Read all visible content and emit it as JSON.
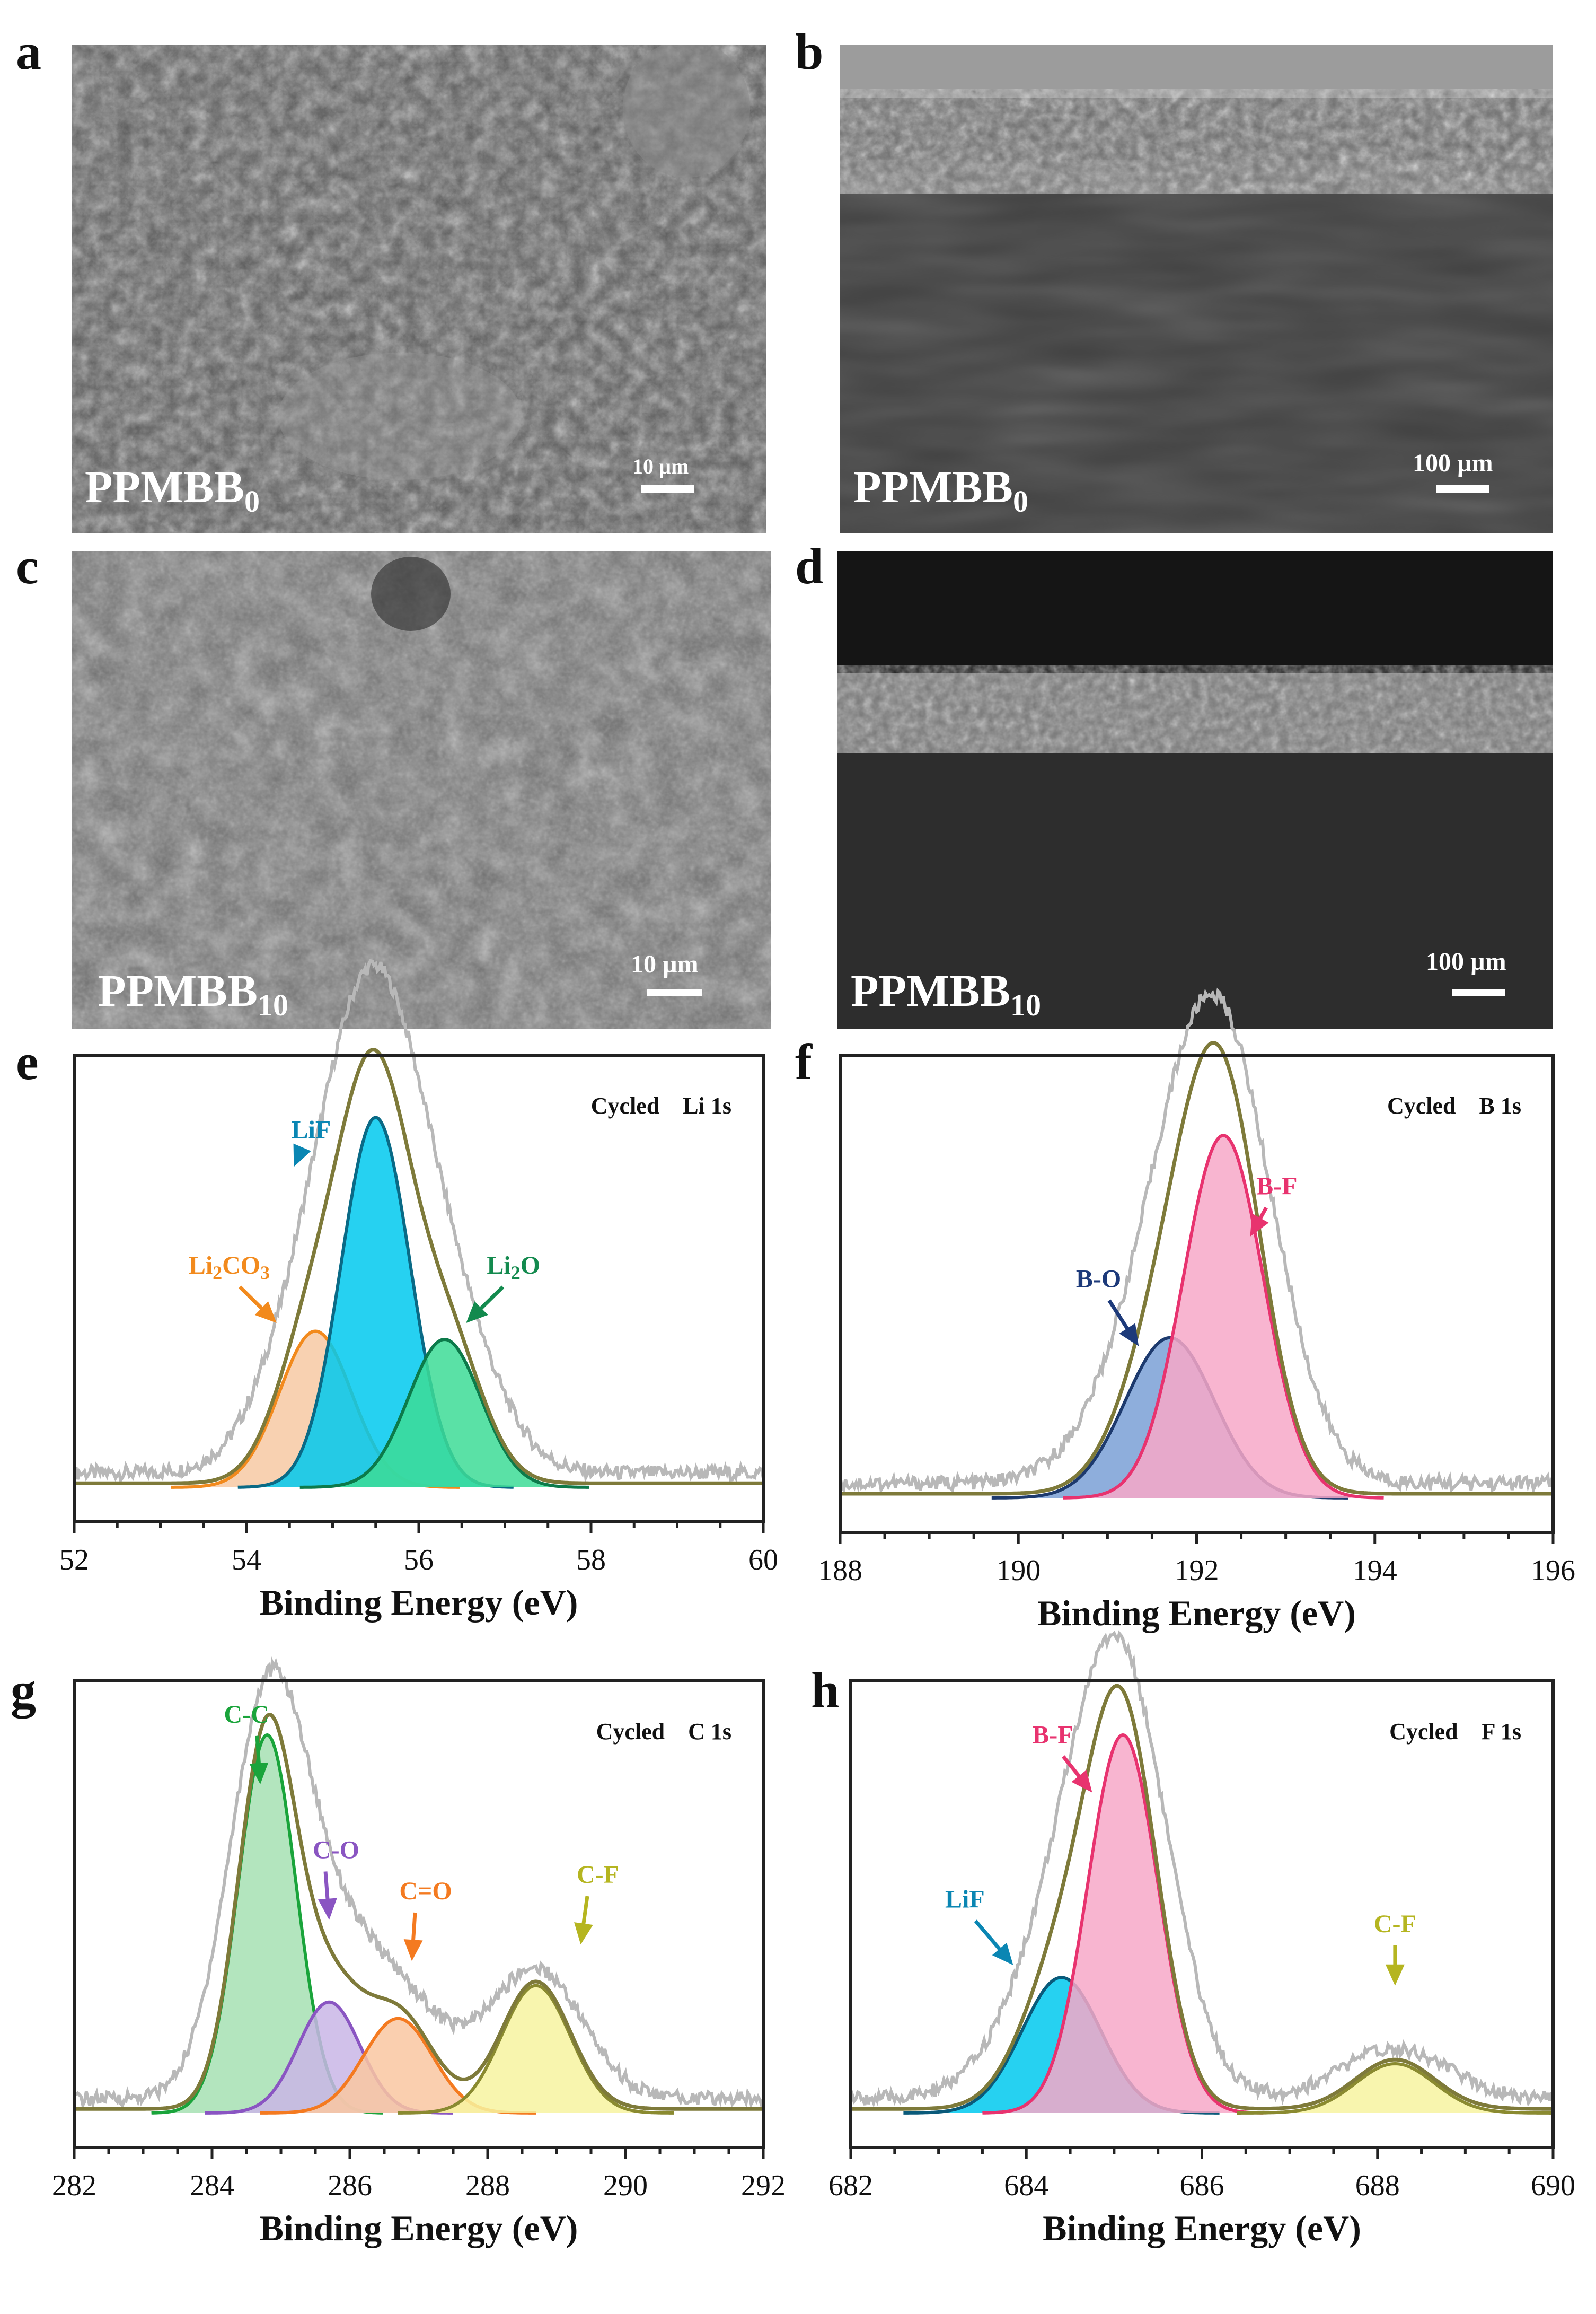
{
  "panels": {
    "a": {
      "letter": "a",
      "label": "PPMBB",
      "sub": "0",
      "scale": "10 µm"
    },
    "b": {
      "letter": "b",
      "label": "PPMBB",
      "sub": "0",
      "scale": "100 µm"
    },
    "c": {
      "letter": "c",
      "label": "PPMBB",
      "sub": "10",
      "scale": "10 µm"
    },
    "d": {
      "letter": "d",
      "label": "PPMBB",
      "sub": "10",
      "scale": "100 µm"
    },
    "e": {
      "letter": "e"
    },
    "f": {
      "letter": "f"
    },
    "g": {
      "letter": "g"
    },
    "h": {
      "letter": "h"
    }
  },
  "chart_data": [
    {
      "id": "e",
      "type": "line",
      "title": "Cycled    Li 1s",
      "xlabel": "Binding Energy (eV)",
      "xlim": [
        52,
        60
      ],
      "xticks": [
        52,
        54,
        56,
        58,
        60
      ],
      "peaks": [
        {
          "name": "Li2CO3",
          "label_parts": [
            "Li",
            "2",
            "CO",
            "3"
          ],
          "center": 54.8,
          "height": 0.38,
          "sigma": 0.42,
          "fill": "#f7c9a3",
          "stroke": "#f28a1d",
          "text_color": "#f28a1d"
        },
        {
          "name": "LiF",
          "label_parts": [
            "LiF"
          ],
          "center": 55.5,
          "height": 0.9,
          "sigma": 0.4,
          "fill": "#00c9ee",
          "stroke": "#0a6a86",
          "text_color": "#0a86b3"
        },
        {
          "name": "Li2O",
          "label_parts": [
            "Li",
            "2",
            "O"
          ],
          "center": 56.3,
          "height": 0.36,
          "sigma": 0.42,
          "fill": "#3ddc97",
          "stroke": "#0c7a4a",
          "text_color": "#138a4e"
        }
      ],
      "envelope_color": "#7e7a3a",
      "raw_color": "#b8b8b8"
    },
    {
      "id": "f",
      "type": "line",
      "title": "Cycled    B 1s",
      "xlabel": "Binding Energy (eV)",
      "xlim": [
        188,
        196
      ],
      "xticks": [
        188,
        190,
        192,
        194,
        196
      ],
      "peaks": [
        {
          "name": "B-O",
          "label_parts": [
            "B-O"
          ],
          "center": 191.7,
          "height": 0.38,
          "sigma": 0.5,
          "fill": "#7aa0d6",
          "stroke": "#1d3a6e",
          "text_color": "#1d3a7a"
        },
        {
          "name": "B-F",
          "label_parts": [
            "B-F"
          ],
          "center": 192.3,
          "height": 0.86,
          "sigma": 0.45,
          "fill": "#f7a8c8",
          "stroke": "#e8336f",
          "text_color": "#e8336f"
        }
      ],
      "envelope_color": "#7e7a3a",
      "raw_color": "#b8b8b8"
    },
    {
      "id": "g",
      "type": "line",
      "title": "Cycled    C 1s",
      "xlabel": "Binding Energy (eV)",
      "xlim": [
        282,
        292
      ],
      "xticks": [
        282,
        284,
        286,
        288,
        290,
        292
      ],
      "peaks": [
        {
          "name": "C-C",
          "label_parts": [
            "C-C"
          ],
          "center": 284.8,
          "height": 0.92,
          "sigma": 0.42,
          "fill": "#a6e0b3",
          "stroke": "#1aa43b",
          "text_color": "#1aa43b"
        },
        {
          "name": "C-O",
          "label_parts": [
            "C-O"
          ],
          "center": 285.7,
          "height": 0.27,
          "sigma": 0.45,
          "fill": "#c9b6e6",
          "stroke": "#8a55c2",
          "text_color": "#8a55c2"
        },
        {
          "name": "C=O",
          "label_parts": [
            "C=O"
          ],
          "center": 286.7,
          "height": 0.23,
          "sigma": 0.5,
          "fill": "#f9c7a1",
          "stroke": "#f47a20",
          "text_color": "#f47a20"
        },
        {
          "name": "C-F",
          "label_parts": [
            "C-F"
          ],
          "center": 288.7,
          "height": 0.31,
          "sigma": 0.5,
          "fill": "#f7f3a0",
          "stroke": "#8a8a30",
          "text_color": "#b5b520"
        }
      ],
      "envelope_color": "#7e7a3a",
      "raw_color": "#b8b8b8"
    },
    {
      "id": "h",
      "type": "line",
      "title": "Cycled    F 1s",
      "xlabel": "Binding Energy (eV)",
      "xlim": [
        682,
        690
      ],
      "xticks": [
        682,
        684,
        686,
        688,
        690
      ],
      "peaks": [
        {
          "name": "LiF",
          "label_parts": [
            "LiF"
          ],
          "center": 684.4,
          "height": 0.33,
          "sigma": 0.45,
          "fill": "#00c9ee",
          "stroke": "#0a5a7a",
          "text_color": "#0a86b3"
        },
        {
          "name": "B-F",
          "label_parts": [
            "B-F"
          ],
          "center": 685.1,
          "height": 0.92,
          "sigma": 0.4,
          "fill": "#f7a8c8",
          "stroke": "#e8336f",
          "text_color": "#e8336f"
        },
        {
          "name": "C-F",
          "label_parts": [
            "C-F"
          ],
          "center": 688.2,
          "height": 0.12,
          "sigma": 0.45,
          "fill": "#f7f3a0",
          "stroke": "#8a8a30",
          "text_color": "#b5b520"
        }
      ],
      "envelope_color": "#7e7a3a",
      "raw_color": "#b8b8b8"
    }
  ]
}
